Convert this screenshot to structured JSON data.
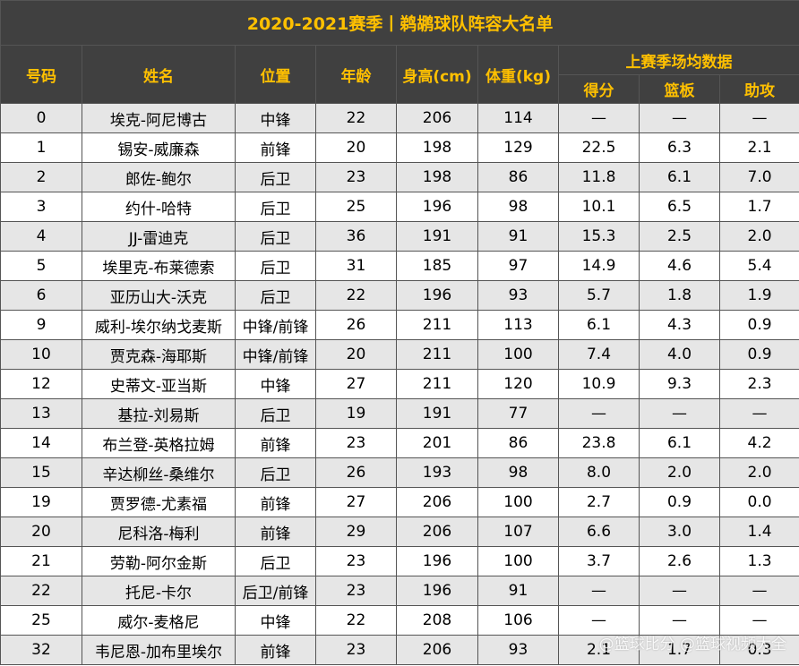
{
  "title": "2020-2021赛季丨鹈鹕球队阵容大名单",
  "headers": {
    "number": "号码",
    "name": "姓名",
    "position": "位置",
    "age": "年龄",
    "height": "身高(cm)",
    "weight": "体重(kg)",
    "last_season": "上赛季场均数据",
    "points": "得分",
    "rebounds": "篮板",
    "assists": "助攻"
  },
  "rows": [
    [
      "0",
      "埃克-阿尼博古",
      "中锋",
      "22",
      "206",
      "114",
      "—",
      "—",
      "—"
    ],
    [
      "1",
      "锡安-威廉森",
      "前锋",
      "20",
      "198",
      "129",
      "22.5",
      "6.3",
      "2.1"
    ],
    [
      "2",
      "郎佐-鲍尔",
      "后卫",
      "23",
      "198",
      "86",
      "11.8",
      "6.1",
      "7.0"
    ],
    [
      "3",
      "约什-哈特",
      "后卫",
      "25",
      "196",
      "98",
      "10.1",
      "6.5",
      "1.7"
    ],
    [
      "4",
      "JJ-雷迪克",
      "后卫",
      "36",
      "191",
      "91",
      "15.3",
      "2.5",
      "2.0"
    ],
    [
      "5",
      "埃里克-布莱德索",
      "后卫",
      "31",
      "185",
      "97",
      "14.9",
      "4.6",
      "5.4"
    ],
    [
      "6",
      "亚历山大-沃克",
      "后卫",
      "22",
      "196",
      "93",
      "5.7",
      "1.8",
      "1.9"
    ],
    [
      "9",
      "威利-埃尔纳戈麦斯",
      "中锋/前锋",
      "26",
      "211",
      "113",
      "6.1",
      "4.3",
      "0.9"
    ],
    [
      "10",
      "贾克森-海耶斯",
      "中锋/前锋",
      "20",
      "211",
      "100",
      "7.4",
      "4.0",
      "0.9"
    ],
    [
      "12",
      "史蒂文-亚当斯",
      "中锋",
      "27",
      "211",
      "120",
      "10.9",
      "9.3",
      "2.3"
    ],
    [
      "13",
      "基拉-刘易斯",
      "后卫",
      "19",
      "191",
      "77",
      "—",
      "—",
      "—"
    ],
    [
      "14",
      "布兰登-英格拉姆",
      "前锋",
      "23",
      "201",
      "86",
      "23.8",
      "6.1",
      "4.2"
    ],
    [
      "15",
      "辛达柳丝-桑维尔",
      "后卫",
      "26",
      "193",
      "98",
      "8.0",
      "2.0",
      "2.0"
    ],
    [
      "19",
      "贾罗德-尤素福",
      "前锋",
      "27",
      "206",
      "100",
      "2.7",
      "0.9",
      "0.0"
    ],
    [
      "20",
      "尼科洛-梅利",
      "前锋",
      "29",
      "206",
      "107",
      "6.6",
      "3.0",
      "1.4"
    ],
    [
      "21",
      "劳勒-阿尔金斯",
      "后卫",
      "23",
      "196",
      "100",
      "3.7",
      "2.6",
      "1.3"
    ],
    [
      "22",
      "托尼-卡尔",
      "后卫/前锋",
      "23",
      "196",
      "91",
      "—",
      "—",
      "—"
    ],
    [
      "25",
      "威尔-麦格尼",
      "中锋",
      "22",
      "208",
      "106",
      "—",
      "—",
      "—"
    ],
    [
      "32",
      "韦尼恩-加布里埃尔",
      "前锋",
      "23",
      "206",
      "93",
      "2.1",
      "1.7",
      "0.3"
    ]
  ],
  "watermark": "@篮球比分 @篮球视频大全"
}
